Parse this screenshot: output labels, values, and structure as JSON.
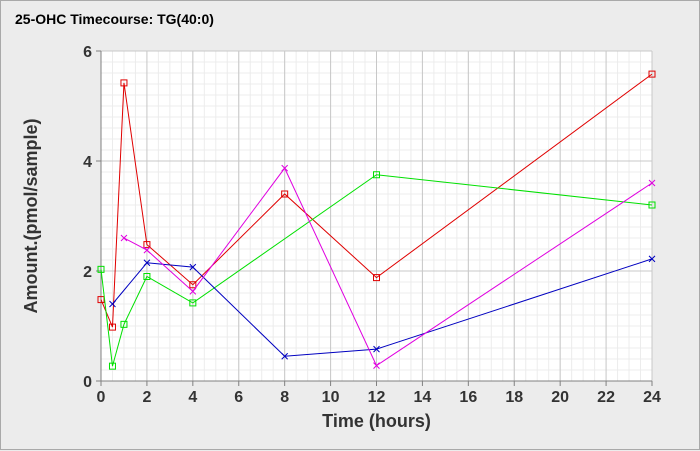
{
  "title": "25-OHC Timecourse: TG(40:0)",
  "chart_data": {
    "type": "line",
    "xlabel": "Time (hours)",
    "ylabel": "Amount.(pmol/sample)",
    "xlim": [
      0,
      24
    ],
    "ylim": [
      0,
      6
    ],
    "xticks": [
      0,
      2,
      4,
      6,
      8,
      10,
      12,
      14,
      16,
      18,
      20,
      22,
      24
    ],
    "yticks": [
      0,
      2,
      4,
      6
    ],
    "grid": true,
    "legend": "none",
    "series": [
      {
        "color": "#e00000",
        "marker": "square",
        "x": [
          0,
          0.5,
          1,
          2,
          4,
          8,
          12,
          24
        ],
        "y": [
          1.48,
          0.98,
          5.42,
          2.48,
          1.75,
          3.4,
          1.88,
          5.58
        ]
      },
      {
        "color": "#00e000",
        "marker": "square",
        "x": [
          0,
          0.5,
          1,
          2,
          4,
          12,
          24
        ],
        "y": [
          2.03,
          0.27,
          1.03,
          1.9,
          1.42,
          3.75,
          3.2
        ]
      },
      {
        "color": "#0000c0",
        "marker": "x",
        "x": [
          0.5,
          2,
          4,
          8,
          12,
          24
        ],
        "y": [
          1.4,
          2.15,
          2.07,
          0.45,
          0.58,
          2.22
        ]
      },
      {
        "color": "#e000e0",
        "marker": "x",
        "x": [
          1,
          2,
          4,
          8,
          12,
          24
        ],
        "y": [
          2.6,
          2.38,
          1.63,
          3.87,
          0.28,
          3.6
        ]
      }
    ]
  }
}
